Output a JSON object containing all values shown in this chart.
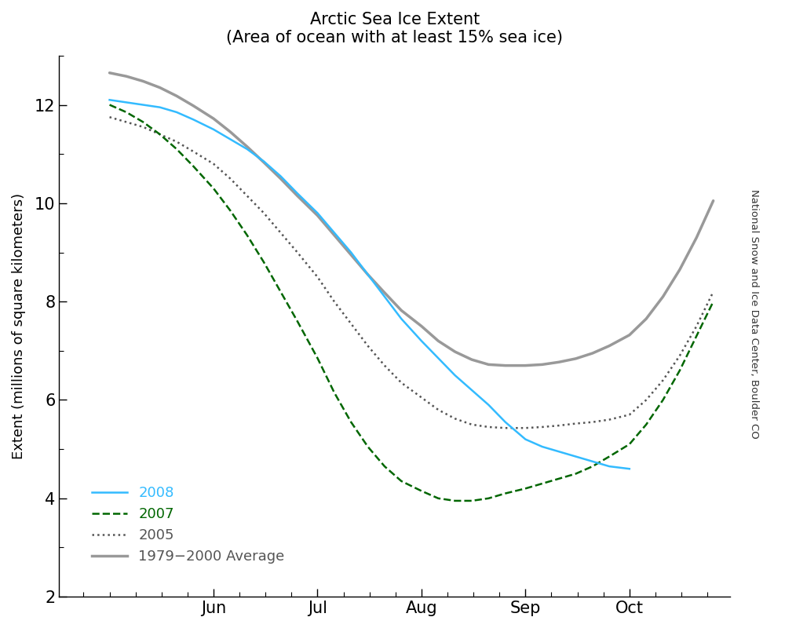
{
  "title": "Arctic Sea Ice Extent",
  "subtitle": "(Area of ocean with at least 15% sea ice)",
  "ylabel": "Extent (millions of square kilometers)",
  "watermark": "National Snow and Ice Data Center, Boulder CO",
  "ylim": [
    2,
    13
  ],
  "yticks": [
    2,
    4,
    6,
    8,
    10,
    12
  ],
  "xlim": [
    -15,
    185
  ],
  "month_labels": [
    "Jun",
    "Jul",
    "Aug",
    "Sep",
    "Oct",
    ""
  ],
  "legend_2008_color": "#33bbff",
  "legend_2007_color": "#006600",
  "legend_2005_color": "#555555",
  "legend_avg_color": "#999999",
  "data_2008_x": [
    0,
    5,
    10,
    15,
    20,
    25,
    31,
    36,
    41,
    46,
    51,
    56,
    62,
    67,
    72,
    77,
    82,
    87,
    93,
    98,
    103,
    108,
    113,
    118,
    124,
    129,
    134,
    139,
    144,
    149,
    155
  ],
  "data_2008_y": [
    12.1,
    12.05,
    12.0,
    11.95,
    11.85,
    11.7,
    11.5,
    11.3,
    11.1,
    10.85,
    10.55,
    10.2,
    9.8,
    9.4,
    9.0,
    8.55,
    8.1,
    7.65,
    7.2,
    6.85,
    6.5,
    6.2,
    5.9,
    5.55,
    5.2,
    5.05,
    4.95,
    4.85,
    4.75,
    4.65,
    4.6
  ],
  "data_2007_x": [
    0,
    5,
    10,
    15,
    20,
    25,
    31,
    36,
    41,
    46,
    51,
    56,
    62,
    67,
    72,
    77,
    82,
    87,
    93,
    98,
    103,
    108,
    113,
    118,
    124,
    129,
    134,
    139,
    144,
    149,
    155,
    160,
    165,
    170,
    175,
    180
  ],
  "data_2007_y": [
    12.0,
    11.85,
    11.65,
    11.4,
    11.1,
    10.75,
    10.3,
    9.85,
    9.35,
    8.8,
    8.2,
    7.6,
    6.85,
    6.15,
    5.55,
    5.05,
    4.65,
    4.35,
    4.15,
    4.0,
    3.95,
    3.95,
    4.0,
    4.1,
    4.2,
    4.3,
    4.4,
    4.5,
    4.65,
    4.85,
    5.1,
    5.5,
    6.0,
    6.6,
    7.3,
    8.0
  ],
  "data_2005_x": [
    0,
    5,
    10,
    15,
    20,
    25,
    31,
    36,
    41,
    46,
    51,
    56,
    62,
    67,
    72,
    77,
    82,
    87,
    93,
    98,
    103,
    108,
    113,
    118,
    124,
    129,
    134,
    139,
    144,
    149,
    155,
    160,
    165,
    170,
    175,
    180
  ],
  "data_2005_y": [
    11.75,
    11.65,
    11.55,
    11.4,
    11.25,
    11.05,
    10.8,
    10.5,
    10.15,
    9.8,
    9.4,
    9.0,
    8.5,
    8.0,
    7.55,
    7.1,
    6.7,
    6.35,
    6.05,
    5.8,
    5.62,
    5.5,
    5.45,
    5.43,
    5.43,
    5.45,
    5.48,
    5.52,
    5.55,
    5.6,
    5.7,
    6.0,
    6.4,
    6.9,
    7.5,
    8.2
  ],
  "data_avg_x": [
    0,
    5,
    10,
    15,
    20,
    25,
    31,
    36,
    41,
    46,
    51,
    56,
    62,
    67,
    72,
    77,
    82,
    87,
    93,
    98,
    103,
    108,
    113,
    118,
    124,
    129,
    134,
    139,
    144,
    149,
    155,
    160,
    165,
    170,
    175,
    180
  ],
  "data_avg_y": [
    12.65,
    12.58,
    12.48,
    12.35,
    12.18,
    11.98,
    11.72,
    11.45,
    11.15,
    10.83,
    10.5,
    10.15,
    9.75,
    9.35,
    8.95,
    8.55,
    8.18,
    7.82,
    7.5,
    7.2,
    6.98,
    6.82,
    6.72,
    6.7,
    6.7,
    6.72,
    6.77,
    6.84,
    6.95,
    7.1,
    7.32,
    7.65,
    8.1,
    8.65,
    9.3,
    10.05
  ],
  "background_color": "#ffffff"
}
